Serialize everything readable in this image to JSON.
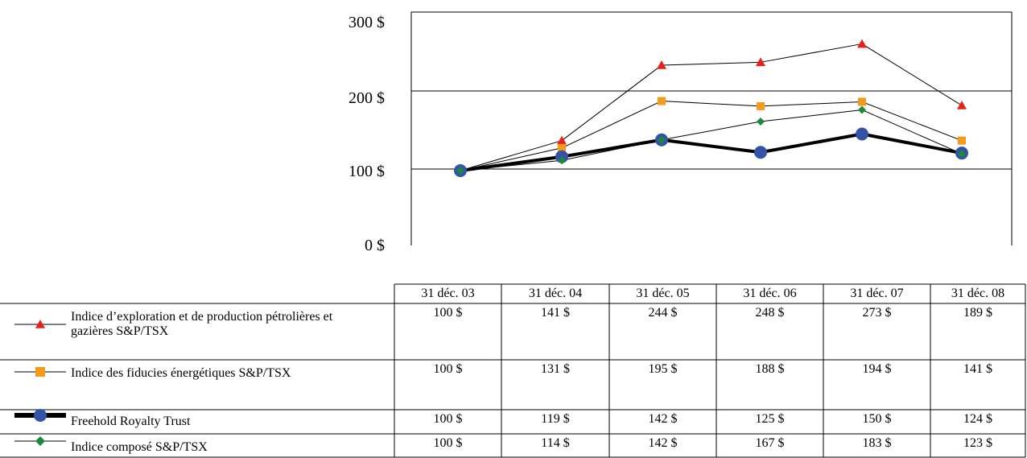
{
  "chart_data": {
    "type": "line",
    "categories": [
      "31 déc. 03",
      "31 déc. 04",
      "31 déc. 05",
      "31 déc. 06",
      "31 déc. 07",
      "31 déc. 08"
    ],
    "y_ticks": [
      "300 $",
      "200 $",
      "100 $",
      "0 $"
    ],
    "ylim": [
      0,
      300
    ],
    "grid": true,
    "series": [
      {
        "name": "Indice d’exploration et de production pétrolières et gazières S&P/TSX",
        "marker": "triangle",
        "color": "#e8201a",
        "values": [
          100,
          141,
          244,
          248,
          273,
          189
        ],
        "labels": [
          "100 $",
          "141 $",
          "244 $",
          "248 $",
          "273 $",
          "189 $"
        ]
      },
      {
        "name": "Indice des fiducies énergétiques S&P/TSX",
        "marker": "square",
        "color": "#f59a1b",
        "values": [
          100,
          131,
          195,
          188,
          194,
          141
        ],
        "labels": [
          "100 $",
          "131 $",
          "195 $",
          "188 $",
          "194 $",
          "141 $"
        ]
      },
      {
        "name": "Freehold Royalty Trust",
        "marker": "circle",
        "color": "#3352a8",
        "values": [
          100,
          119,
          142,
          125,
          150,
          124
        ],
        "labels": [
          "100 $",
          "119 $",
          "142 $",
          "125 $",
          "150 $",
          "124 $"
        ]
      },
      {
        "name": "Indice composé S&P/TSX",
        "marker": "diamond",
        "color": "#1a8a3a",
        "values": [
          100,
          114,
          142,
          167,
          183,
          123
        ],
        "labels": [
          "100 $",
          "114 $",
          "142 $",
          "167 $",
          "183 $",
          "123 $"
        ]
      }
    ]
  }
}
